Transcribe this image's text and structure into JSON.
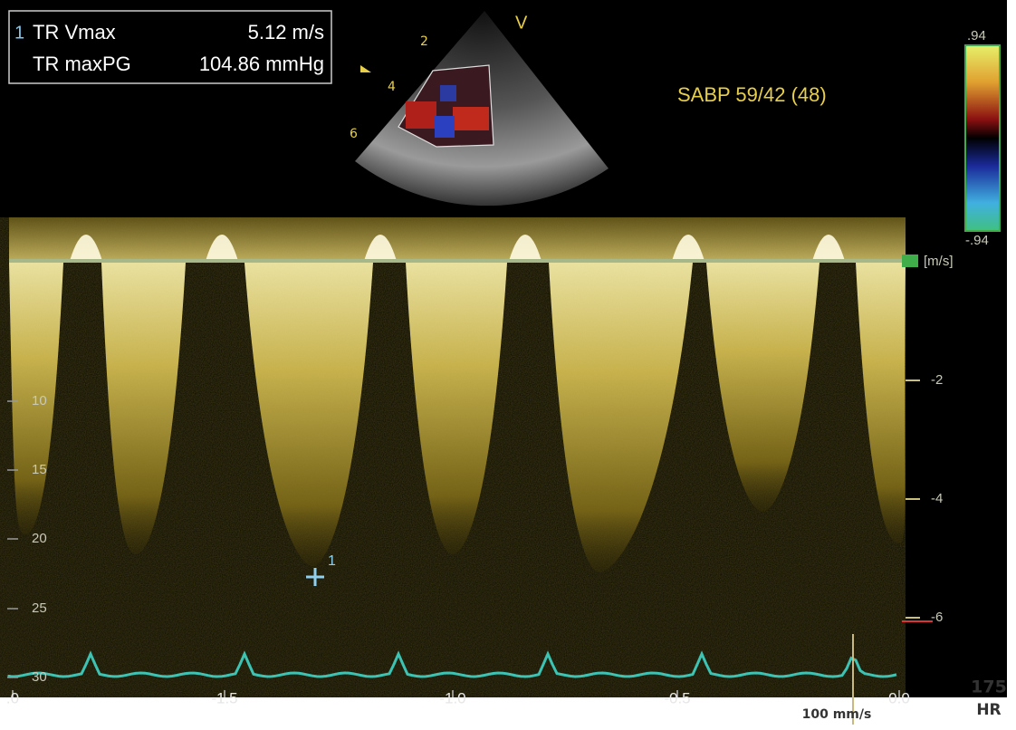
{
  "measurements": {
    "marker": "1",
    "rows": [
      {
        "label": "TR Vmax",
        "value": "5.12 m/s"
      },
      {
        "label": "TR maxPG",
        "value": "104.86 mmHg"
      }
    ]
  },
  "sector": {
    "view": "V",
    "depths": [
      "2",
      "4",
      "6"
    ]
  },
  "pressure": "SABP 59/42 (48)",
  "color_scale": {
    "top": ".94",
    "bottom": "-.94"
  },
  "velocity_scale": {
    "unit": "[m/s]",
    "ticks": [
      "-2",
      "-4",
      "-6"
    ]
  },
  "depth_scale": [
    "10",
    "15",
    "20",
    "25",
    "30"
  ],
  "time_axis": [
    ".0",
    "-1.5",
    "-1.0",
    "-0.5",
    "0.0"
  ],
  "cursor": "1",
  "sweep": "100 mm/s",
  "heart_rate": {
    "value": "175",
    "label": "HR"
  }
}
